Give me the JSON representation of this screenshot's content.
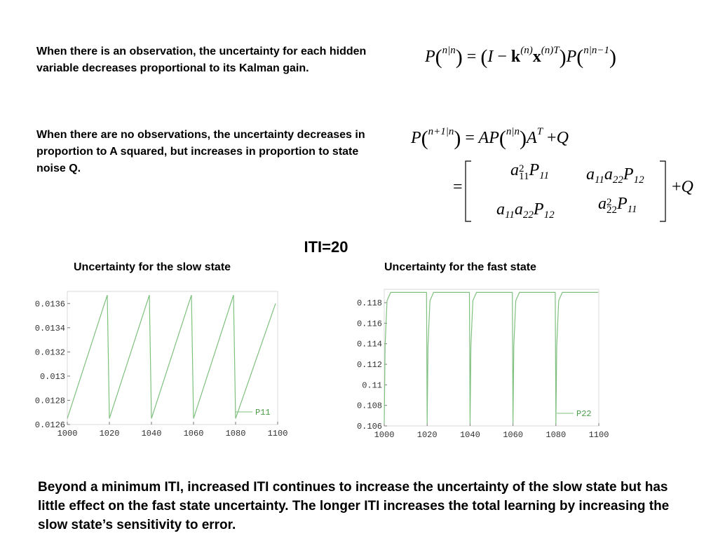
{
  "text": {
    "para1": "When there is an observation, the uncertainty for each hidden variable decreases proportional to its Kalman gain.",
    "para2": "When there are no observations, the uncertainty decreases in proportion to A squared, but increases in proportion to state noise Q.",
    "iti_label": "ITI=20",
    "conclusion": "Beyond a minimum ITI, increased ITI continues to increase the uncertainty of the slow state but has little effect on the fast state uncertainty.  The longer ITI increases the total learning by increasing the slow state’s sensitivity to error."
  },
  "equations": {
    "P": "P",
    "eq": "=",
    "I": "I",
    "minus": "−",
    "k": "k",
    "x": "x",
    "sup_nn": "n|n",
    "sup_nm1": "n|n−1",
    "sup_np1n": "n+1|n",
    "sup_n": "(n)",
    "sup_nT": "(n)T",
    "A": "A",
    "AT": "T",
    "Q": "Q",
    "plus": "+",
    "a11": "a",
    "sub11": "11",
    "sub22": "22",
    "sub12": "12",
    "sq": "2"
  },
  "chart_data": [
    {
      "type": "line",
      "title": "Uncertainty for the slow state",
      "xlim": [
        1000,
        1100
      ],
      "ylim": [
        0.0126,
        0.0137
      ],
      "xticks": [
        "1000",
        "1020",
        "1040",
        "1060",
        "1080",
        "1100"
      ],
      "yticks": [
        "0.0126",
        "0.0128",
        "0.013",
        "0.0132",
        "0.0134",
        "0.0136"
      ],
      "legend": "P11",
      "legend_position": "bottom-right",
      "color": "#7fc07f",
      "series": [
        {
          "name": "P11",
          "x": [
            1000,
            1019,
            1020,
            1039,
            1040,
            1059,
            1060,
            1079,
            1080,
            1099
          ],
          "y": [
            0.01265,
            0.01367,
            0.01265,
            0.01367,
            0.01265,
            0.01367,
            0.01265,
            0.01367,
            0.01265,
            0.0136
          ]
        }
      ]
    },
    {
      "type": "line",
      "title": "Uncertainty for the fast state",
      "xlim": [
        1000,
        1100
      ],
      "ylim": [
        0.106,
        0.1193
      ],
      "xticks": [
        "1000",
        "1020",
        "1040",
        "1060",
        "1080",
        "1100"
      ],
      "yticks": [
        "0.106",
        "0.108",
        "0.11",
        "0.112",
        "0.114",
        "0.116",
        "0.118"
      ],
      "legend": "P22",
      "legend_position": "bottom-right",
      "color": "#7fc07f",
      "series": [
        {
          "name": "P22",
          "x": [
            1000,
            1000.4,
            1001.3,
            1003,
            1019.7,
            1020,
            1020.4,
            1021.3,
            1023,
            1039.7,
            1040,
            1040.4,
            1041.3,
            1043,
            1059.7,
            1060,
            1060.4,
            1061.3,
            1063,
            1079.7,
            1080,
            1080.4,
            1081.3,
            1083,
            1099.7
          ],
          "y": [
            0.1062,
            0.1138,
            0.1182,
            0.119,
            0.119,
            0.1062,
            0.1138,
            0.1182,
            0.119,
            0.119,
            0.1062,
            0.1138,
            0.1182,
            0.119,
            0.119,
            0.1062,
            0.1138,
            0.1182,
            0.119,
            0.119,
            0.1062,
            0.1138,
            0.1182,
            0.119,
            0.119
          ]
        }
      ]
    }
  ]
}
